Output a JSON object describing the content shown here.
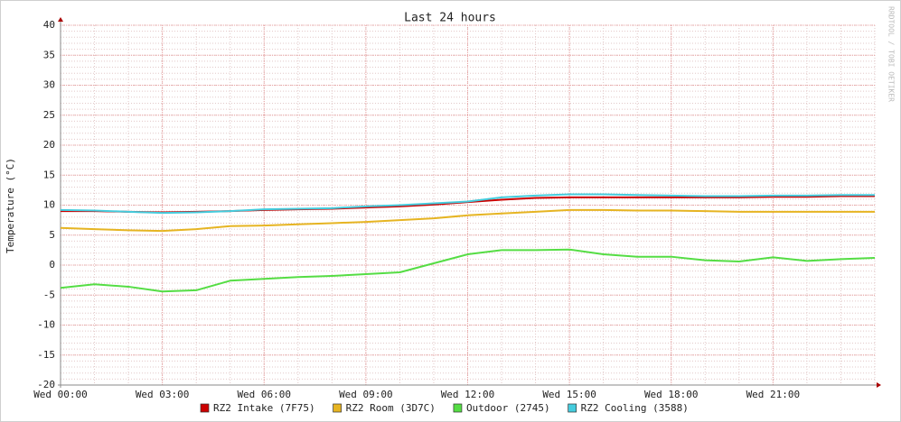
{
  "chart_data": {
    "type": "line",
    "title": "Last 24 hours",
    "y_label": "Temperature (°C)",
    "watermark": "RRDTOOL / TOBI OETIKER",
    "x": [
      0,
      1,
      2,
      3,
      4,
      5,
      6,
      7,
      8,
      9,
      10,
      11,
      12,
      13,
      14,
      15,
      16,
      17,
      18,
      19,
      20,
      21,
      22,
      23,
      24
    ],
    "xlim": [
      0,
      24
    ],
    "xticks": [
      {
        "value": 0,
        "label": "Wed 00:00"
      },
      {
        "value": 3,
        "label": "Wed 03:00"
      },
      {
        "value": 6,
        "label": "Wed 06:00"
      },
      {
        "value": 9,
        "label": "Wed 09:00"
      },
      {
        "value": 12,
        "label": "Wed 12:00"
      },
      {
        "value": 15,
        "label": "Wed 15:00"
      },
      {
        "value": 18,
        "label": "Wed 18:00"
      },
      {
        "value": 21,
        "label": "Wed 21:00"
      }
    ],
    "ylim": [
      -20,
      40
    ],
    "yticks": [
      -20,
      -15,
      -10,
      -5,
      0,
      5,
      10,
      15,
      20,
      25,
      30,
      35,
      40
    ],
    "grid": true,
    "series": [
      {
        "name": "RZ2 Intake (7F75)",
        "color": "#cc0000",
        "values": [
          9.0,
          9.0,
          8.9,
          8.8,
          8.9,
          9.0,
          9.2,
          9.3,
          9.4,
          9.6,
          9.8,
          10.1,
          10.5,
          10.9,
          11.2,
          11.3,
          11.3,
          11.3,
          11.3,
          11.3,
          11.3,
          11.4,
          11.4,
          11.5,
          11.5
        ]
      },
      {
        "name": "RZ2 Room (3D7C)",
        "color": "#e6b422",
        "values": [
          6.2,
          6.0,
          5.8,
          5.7,
          6.0,
          6.5,
          6.6,
          6.8,
          7.0,
          7.2,
          7.5,
          7.8,
          8.3,
          8.6,
          8.9,
          9.2,
          9.2,
          9.1,
          9.1,
          9.0,
          8.9,
          8.9,
          8.9,
          8.9,
          8.9
        ]
      },
      {
        "name": "Outdoor (2745)",
        "color": "#55dd44",
        "values": [
          -3.8,
          -3.2,
          -3.6,
          -4.4,
          -4.2,
          -2.6,
          -2.3,
          -2.0,
          -1.8,
          -1.5,
          -1.2,
          0.3,
          1.8,
          2.5,
          2.5,
          2.6,
          1.8,
          1.4,
          1.4,
          0.8,
          0.6,
          1.3,
          0.7,
          1.0,
          1.2
        ]
      },
      {
        "name": "RZ2 Cooling (3588)",
        "color": "#44ccdd",
        "values": [
          9.2,
          9.1,
          8.9,
          8.7,
          8.8,
          9.0,
          9.3,
          9.4,
          9.5,
          9.8,
          10.0,
          10.3,
          10.6,
          11.3,
          11.6,
          11.8,
          11.8,
          11.7,
          11.6,
          11.5,
          11.5,
          11.6,
          11.6,
          11.7,
          11.7
        ]
      }
    ]
  }
}
